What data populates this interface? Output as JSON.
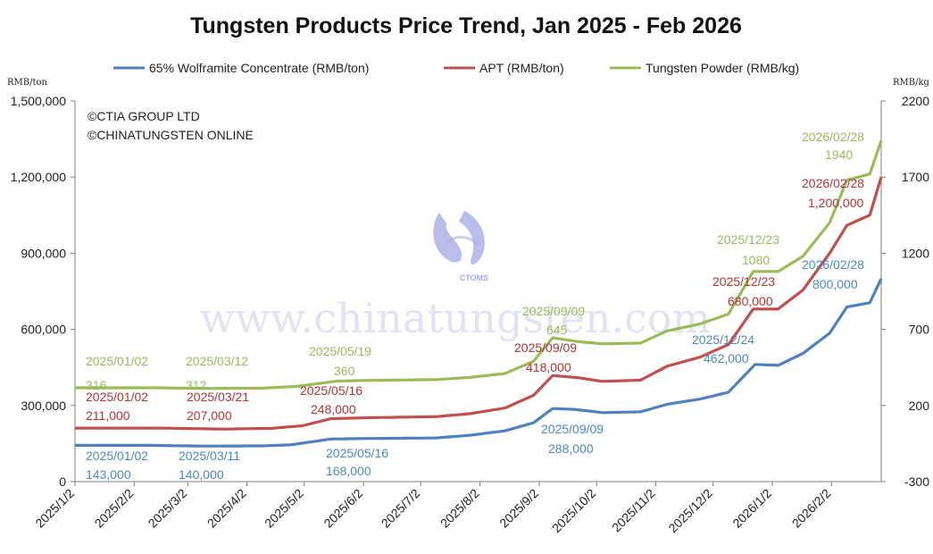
{
  "chart_data": {
    "type": "line",
    "title": "Tungsten Products Price Trend, Jan 2025 - Feb 2026",
    "credits": [
      "©CTIA GROUP LTD",
      "©CHINATUNGSTEN ONLINE"
    ],
    "watermark": "www.chinatungsten.com",
    "watermark_logo_text": "CTOMS",
    "left_axis": {
      "unit": "RMB/ton",
      "range": [
        0,
        1500000
      ],
      "ticks": [
        "0",
        "300,000",
        "600,000",
        "900,000",
        "1,200,000",
        "1,500,000"
      ]
    },
    "right_axis": {
      "unit": "RMB/kg",
      "range": [
        -300,
        2200
      ],
      "ticks": [
        "-300",
        "200",
        "700",
        "1200",
        "1700",
        "2200"
      ]
    },
    "x_axis": {
      "range": [
        "2025-01-02",
        "2026-02-28"
      ],
      "tick_labels": [
        "2025/1/2",
        "2025/2/2",
        "2025/3/2",
        "2025/4/2",
        "2025/5/2",
        "2025/6/2",
        "2025/7/2",
        "2025/8/2",
        "2025/9/2",
        "2025/10/2",
        "2025/11/2",
        "2025/12/2",
        "2026/1/2",
        "2026/2/2"
      ],
      "tick_dates": [
        "2025-01-02",
        "2025-02-02",
        "2025-03-02",
        "2025-04-02",
        "2025-05-02",
        "2025-06-02",
        "2025-07-02",
        "2025-08-02",
        "2025-09-02",
        "2025-10-02",
        "2025-11-02",
        "2025-12-02",
        "2026-01-02",
        "2026-02-02"
      ]
    },
    "grid": false,
    "legend_position": "top",
    "series": [
      {
        "name": "65% Wolframite Concentrate (RMB/ton)",
        "axis": "left",
        "color": "#4f81bd",
        "points": [
          [
            "2025-01-02",
            143000
          ],
          [
            "2025-02-10",
            143000
          ],
          [
            "2025-03-11",
            140000
          ],
          [
            "2025-04-10",
            141000
          ],
          [
            "2025-04-25",
            145000
          ],
          [
            "2025-05-16",
            168000
          ],
          [
            "2025-06-05",
            170000
          ],
          [
            "2025-07-10",
            172000
          ],
          [
            "2025-07-28",
            183000
          ],
          [
            "2025-08-15",
            200000
          ],
          [
            "2025-08-30",
            232000
          ],
          [
            "2025-09-09",
            288000
          ],
          [
            "2025-09-20",
            285000
          ],
          [
            "2025-10-05",
            272000
          ],
          [
            "2025-10-25",
            275000
          ],
          [
            "2025-11-08",
            305000
          ],
          [
            "2025-11-25",
            325000
          ],
          [
            "2025-12-10",
            352000
          ],
          [
            "2025-12-24",
            462000
          ],
          [
            "2026-01-05",
            458000
          ],
          [
            "2026-01-18",
            505000
          ],
          [
            "2026-02-01",
            585000
          ],
          [
            "2026-02-10",
            688000
          ],
          [
            "2026-02-22",
            705000
          ],
          [
            "2026-02-28",
            800000
          ]
        ],
        "annotations": [
          {
            "date": "2025/01/02",
            "value": "143,000"
          },
          {
            "date": "2025/03/11",
            "value": "140,000"
          },
          {
            "date": "2025/05/16",
            "value": "168,000"
          },
          {
            "date": "2025/09/09",
            "value": "288,000"
          },
          {
            "date": "2025/12/24",
            "value": "462,000"
          },
          {
            "date": "2026/02/28",
            "value": "800,000"
          }
        ]
      },
      {
        "name": "APT (RMB/ton)",
        "axis": "left",
        "color": "#c0504d",
        "points": [
          [
            "2025-01-02",
            211000
          ],
          [
            "2025-02-15",
            211000
          ],
          [
            "2025-03-21",
            207000
          ],
          [
            "2025-04-15",
            210000
          ],
          [
            "2025-05-01",
            220000
          ],
          [
            "2025-05-16",
            248000
          ],
          [
            "2025-06-05",
            252000
          ],
          [
            "2025-07-10",
            256000
          ],
          [
            "2025-07-28",
            268000
          ],
          [
            "2025-08-15",
            290000
          ],
          [
            "2025-08-30",
            340000
          ],
          [
            "2025-09-09",
            418000
          ],
          [
            "2025-09-22",
            410000
          ],
          [
            "2025-10-05",
            395000
          ],
          [
            "2025-10-25",
            400000
          ],
          [
            "2025-11-08",
            455000
          ],
          [
            "2025-11-25",
            490000
          ],
          [
            "2025-12-10",
            540000
          ],
          [
            "2025-12-23",
            680000
          ],
          [
            "2026-01-05",
            680000
          ],
          [
            "2026-01-18",
            755000
          ],
          [
            "2026-02-01",
            900000
          ],
          [
            "2026-02-10",
            1010000
          ],
          [
            "2026-02-22",
            1050000
          ],
          [
            "2026-02-28",
            1200000
          ]
        ],
        "annotations": [
          {
            "date": "2025/01/02",
            "value": "211,000"
          },
          {
            "date": "2025/03/21",
            "value": "207,000"
          },
          {
            "date": "2025/05/16",
            "value": "248,000"
          },
          {
            "date": "2025/09/09",
            "value": "418,000"
          },
          {
            "date": "2025/12/23",
            "value": "680,000"
          },
          {
            "date": "2026/02/28",
            "value": "1,200,000"
          }
        ]
      },
      {
        "name": "Tungsten Powder (RMB/kg)",
        "axis": "right",
        "color": "#9bbb59",
        "points": [
          [
            "2025-01-02",
            316
          ],
          [
            "2025-02-15",
            316
          ],
          [
            "2025-03-12",
            312
          ],
          [
            "2025-04-10",
            314
          ],
          [
            "2025-04-28",
            325
          ],
          [
            "2025-05-19",
            360
          ],
          [
            "2025-06-05",
            365
          ],
          [
            "2025-07-10",
            370
          ],
          [
            "2025-07-28",
            385
          ],
          [
            "2025-08-15",
            410
          ],
          [
            "2025-08-30",
            490
          ],
          [
            "2025-09-09",
            645
          ],
          [
            "2025-09-22",
            620
          ],
          [
            "2025-10-05",
            605
          ],
          [
            "2025-10-25",
            610
          ],
          [
            "2025-11-08",
            690
          ],
          [
            "2025-11-25",
            735
          ],
          [
            "2025-12-10",
            800
          ],
          [
            "2025-12-23",
            1080
          ],
          [
            "2026-01-05",
            1080
          ],
          [
            "2026-01-18",
            1180
          ],
          [
            "2026-02-01",
            1400
          ],
          [
            "2026-02-10",
            1680
          ],
          [
            "2026-02-22",
            1720
          ],
          [
            "2026-02-28",
            1940
          ]
        ],
        "annotations": [
          {
            "date": "2025/01/02",
            "value": "316"
          },
          {
            "date": "2025/03/12",
            "value": "312"
          },
          {
            "date": "2025/05/19",
            "value": "360"
          },
          {
            "date": "2025/09/09",
            "value": "645"
          },
          {
            "date": "2025/12/23",
            "value": "1080"
          },
          {
            "date": "2026/02/28",
            "value": "1940"
          }
        ]
      }
    ]
  }
}
